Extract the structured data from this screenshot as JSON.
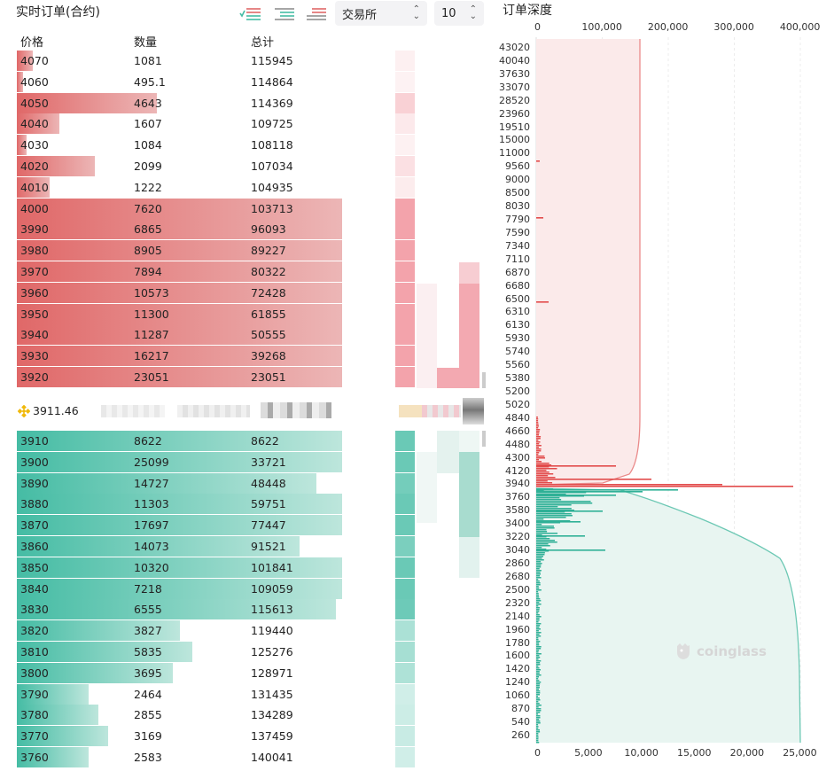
{
  "title": "实时订单(合约)",
  "toolbar": {
    "exchange_select": "交易所",
    "depth_select": "10",
    "icons": [
      "order-both-icon",
      "order-bids-icon",
      "order-asks-icon"
    ]
  },
  "columns": {
    "price": "价格",
    "qty": "数量",
    "total": "总计"
  },
  "asks": [
    {
      "price": "4070",
      "qty": "1081",
      "total": "115945",
      "bar": 0.05
    },
    {
      "price": "4060",
      "qty": "495.1",
      "total": "114864",
      "bar": 0.02
    },
    {
      "price": "4050",
      "qty": "4643",
      "total": "114369",
      "bar": 0.43
    },
    {
      "price": "4040",
      "qty": "1607",
      "total": "109725",
      "bar": 0.13
    },
    {
      "price": "4030",
      "qty": "1084",
      "total": "108118",
      "bar": 0.03
    },
    {
      "price": "4020",
      "qty": "2099",
      "total": "107034",
      "bar": 0.24
    },
    {
      "price": "4010",
      "qty": "1222",
      "total": "104935",
      "bar": 0.1
    },
    {
      "price": "4000",
      "qty": "7620",
      "total": "103713",
      "bar": 1
    },
    {
      "price": "3990",
      "qty": "6865",
      "total": "96093",
      "bar": 1
    },
    {
      "price": "3980",
      "qty": "8905",
      "total": "89227",
      "bar": 1
    },
    {
      "price": "3970",
      "qty": "7894",
      "total": "80322",
      "bar": 1
    },
    {
      "price": "3960",
      "qty": "10573",
      "total": "72428",
      "bar": 1
    },
    {
      "price": "3950",
      "qty": "11300",
      "total": "61855",
      "bar": 1
    },
    {
      "price": "3940",
      "qty": "11287",
      "total": "50555",
      "bar": 1
    },
    {
      "price": "3930",
      "qty": "16217",
      "total": "39268",
      "bar": 1
    },
    {
      "price": "3920",
      "qty": "23051",
      "total": "23051",
      "bar": 1
    }
  ],
  "mid_price": "3911.46",
  "bids": [
    {
      "price": "3910",
      "qty": "8622",
      "total": "8622",
      "bar": 1
    },
    {
      "price": "3900",
      "qty": "25099",
      "total": "33721",
      "bar": 1
    },
    {
      "price": "3890",
      "qty": "14727",
      "total": "48448",
      "bar": 0.92
    },
    {
      "price": "3880",
      "qty": "11303",
      "total": "59751",
      "bar": 1
    },
    {
      "price": "3870",
      "qty": "17697",
      "total": "77447",
      "bar": 1
    },
    {
      "price": "3860",
      "qty": "14073",
      "total": "91521",
      "bar": 0.87
    },
    {
      "price": "3850",
      "qty": "10320",
      "total": "101841",
      "bar": 1
    },
    {
      "price": "3840",
      "qty": "7218",
      "total": "109059",
      "bar": 1
    },
    {
      "price": "3830",
      "qty": "6555",
      "total": "115613",
      "bar": 0.98
    },
    {
      "price": "3820",
      "qty": "3827",
      "total": "119440",
      "bar": 0.5
    },
    {
      "price": "3810",
      "qty": "5835",
      "total": "125276",
      "bar": 0.54
    },
    {
      "price": "3800",
      "qty": "3695",
      "total": "128971",
      "bar": 0.48
    },
    {
      "price": "3790",
      "qty": "2464",
      "total": "131435",
      "bar": 0.22
    },
    {
      "price": "3780",
      "qty": "2855",
      "total": "134289",
      "bar": 0.25
    },
    {
      "price": "3770",
      "qty": "3169",
      "total": "137459",
      "bar": 0.28
    },
    {
      "price": "3760",
      "qty": "2583",
      "total": "140041",
      "bar": 0.22
    }
  ],
  "depth_chart": {
    "title": "订单深度",
    "top_axis": [
      "0",
      "100,000",
      "200,000",
      "300,000",
      "400,000"
    ],
    "bottom_axis": [
      "0",
      "5,000",
      "10,000",
      "15,000",
      "20,000",
      "25,000"
    ],
    "price_labels": [
      "43020",
      "40040",
      "37630",
      "33070",
      "28520",
      "23960",
      "19510",
      "15000",
      "11000",
      "9560",
      "9000",
      "8500",
      "8030",
      "7790",
      "7590",
      "7340",
      "7110",
      "6870",
      "6680",
      "6500",
      "6310",
      "6130",
      "5930",
      "5740",
      "5560",
      "5380",
      "5200",
      "5020",
      "4840",
      "4660",
      "4480",
      "4300",
      "4120",
      "3940",
      "3760",
      "3580",
      "3400",
      "3220",
      "3040",
      "2860",
      "2680",
      "2500",
      "2320",
      "2140",
      "1960",
      "1780",
      "1600",
      "1420",
      "1240",
      "1060",
      "870",
      "540",
      "260"
    ],
    "watermark": "coinglass"
  },
  "colors": {
    "ask": "#e06868",
    "ask_light": "#f5d0d0",
    "bid": "#45bca4",
    "bid_light": "#c8ece4"
  }
}
